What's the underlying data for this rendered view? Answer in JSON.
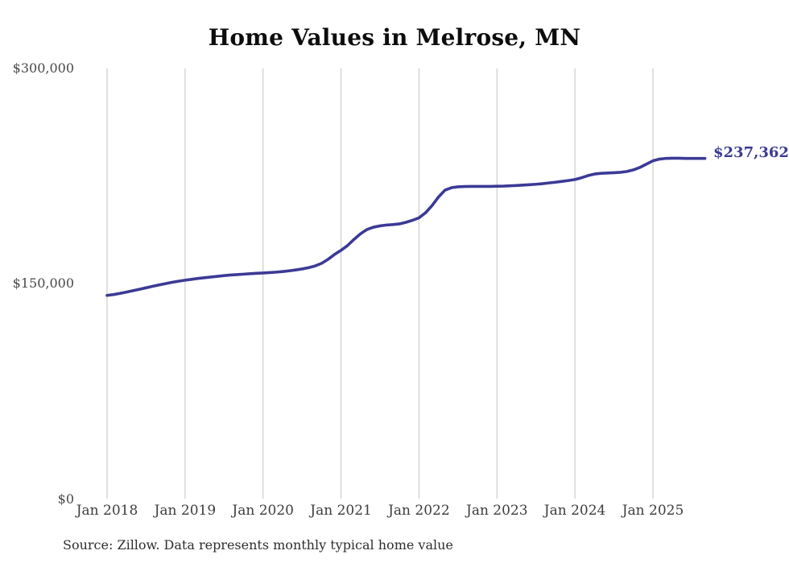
{
  "chart": {
    "title": "Home Values in Melrose, MN",
    "source_note": "Source: Zillow. Data represents monthly typical home value",
    "end_label": "$237,362",
    "line_color": "#3b3a96",
    "grid_color": "#cccccc"
  },
  "chart_data": {
    "type": "line",
    "title": "Home Values in Melrose, MN",
    "series_name": "Monthly typical home value (USD)",
    "x_start": "2018-01",
    "x_end": "2025-09",
    "x_interval": "month",
    "x_tick_labels": [
      "Jan 2018",
      "Jan 2019",
      "Jan 2020",
      "Jan 2021",
      "Jan 2022",
      "Jan 2023",
      "Jan 2024",
      "Jan 2025"
    ],
    "y_tick_labels": [
      "$300,000",
      "$150,000",
      "$0"
    ],
    "y_ticks": [
      300000,
      150000,
      0
    ],
    "ylim": [
      0,
      300000
    ],
    "grid": "vertical-only",
    "legend": "none",
    "end_value": 237362,
    "values": [
      142000,
      142600,
      143400,
      144300,
      145300,
      146300,
      147300,
      148300,
      149300,
      150200,
      151100,
      151900,
      152600,
      153200,
      153800,
      154300,
      154800,
      155300,
      155800,
      156200,
      156500,
      156800,
      157100,
      157400,
      157600,
      157900,
      158200,
      158600,
      159100,
      159700,
      160400,
      161300,
      162500,
      164300,
      167100,
      170500,
      173400,
      176700,
      181000,
      184900,
      187900,
      189500,
      190400,
      191000,
      191300,
      191800,
      192900,
      194300,
      196000,
      199500,
      204500,
      210500,
      215300,
      217000,
      217600,
      217800,
      217900,
      217900,
      217900,
      217900,
      218000,
      218100,
      218300,
      218500,
      218800,
      219100,
      219400,
      219800,
      220300,
      220800,
      221400,
      222000,
      222700,
      223900,
      225400,
      226500,
      227000,
      227200,
      227400,
      227700,
      228300,
      229400,
      231100,
      233400,
      235700,
      236900,
      237400,
      237500,
      237500,
      237400,
      237400,
      237362,
      237362
    ]
  }
}
